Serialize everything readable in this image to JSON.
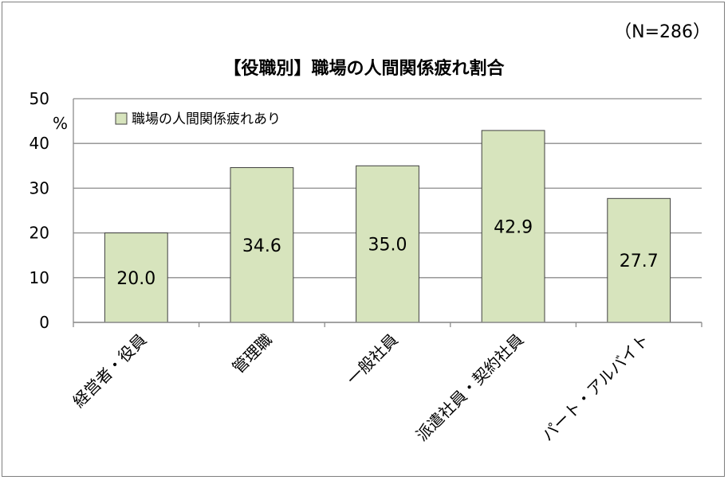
{
  "chart_data": {
    "type": "bar",
    "title": "【役職別】職場の人間関係疲れ割合",
    "sample_note": "（N=286）",
    "ylabel": "%",
    "ylim": [
      0,
      50
    ],
    "yticks": [
      0,
      10,
      20,
      30,
      40,
      50
    ],
    "grid": true,
    "legend_position": "top-left",
    "categories": [
      "経営者・役員",
      "管理職",
      "一般社員",
      "派遣社員・契約社員",
      "パート・アルバイト"
    ],
    "series": [
      {
        "name": "職場の人間関係疲れあり",
        "values": [
          20.0,
          34.6,
          35.0,
          42.9,
          27.7
        ],
        "color": "#d7e4bd",
        "stroke": "#404040"
      }
    ]
  }
}
